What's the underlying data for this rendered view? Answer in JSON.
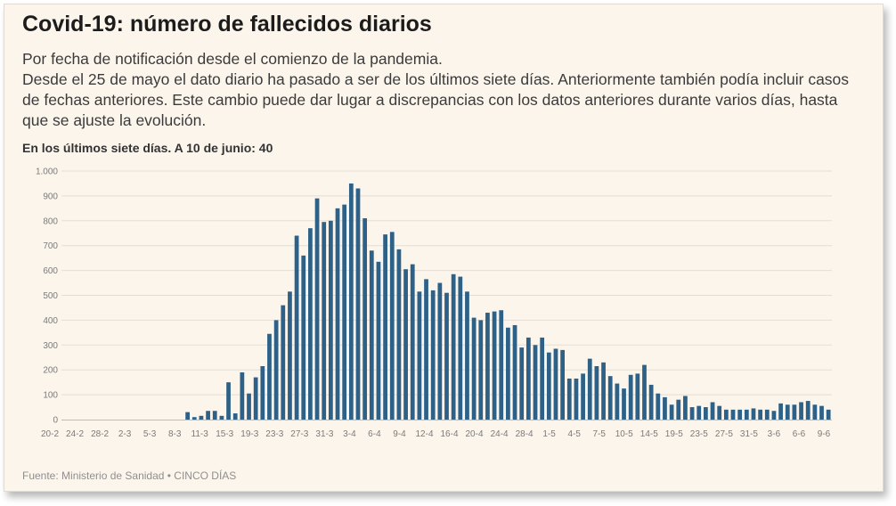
{
  "header": {
    "title": "Covid-19: número de fallecidos diarios",
    "description": [
      "Por fecha de notificación desde el comienzo de la pandemia.",
      "Desde el 25 de mayo el dato diario ha pasado a ser de los últimos siete días. Anteriormente también podía incluir casos de fechas anteriores. Este cambio puede dar lugar a discrepancias con los datos anteriores durante varios días, hasta que se ajuste la evolución."
    ],
    "subtitle": "En los últimos siete días. A 10 de junio: 40"
  },
  "footer": {
    "source": "Fuente: Ministerio de Sanidad • CINCO DÍAS"
  },
  "colors": {
    "bar": "#2d6187",
    "background": "#fcf5ec"
  },
  "chart_data": {
    "type": "bar",
    "title": "Covid-19: número de fallecidos diarios",
    "xlabel": "",
    "ylabel": "",
    "ylim": [
      0,
      1000
    ],
    "grid": true,
    "yticks": [
      0,
      100,
      200,
      300,
      400,
      500,
      600,
      700,
      800,
      900,
      1000
    ],
    "ytick_labels": [
      "0",
      "100",
      "200",
      "300",
      "400",
      "500",
      "600",
      "700",
      "800",
      "900",
      "1.000"
    ],
    "xtick_labels": [
      "20-2",
      "24-2",
      "28-2",
      "2-3",
      "5-3",
      "8-3",
      "11-3",
      "15-3",
      "19-3",
      "23-3",
      "27-3",
      "31-3",
      "3-4",
      "6-4",
      "9-4",
      "12-4",
      "16-4",
      "20-4",
      "24-4",
      "28-4",
      "1-5",
      "4-5",
      "7-5",
      "10-5",
      "14-5",
      "19-5",
      "23-5",
      "27-5",
      "31-5",
      "3-6",
      "6-6",
      "9-6"
    ],
    "values": [
      0,
      0,
      0,
      0,
      0,
      0,
      0,
      0,
      0,
      0,
      0,
      0,
      0,
      0,
      0,
      0,
      0,
      0,
      30,
      10,
      15,
      35,
      35,
      15,
      150,
      25,
      190,
      105,
      170,
      215,
      345,
      400,
      460,
      515,
      740,
      660,
      770,
      890,
      795,
      800,
      850,
      865,
      950,
      930,
      810,
      680,
      635,
      745,
      755,
      685,
      605,
      625,
      515,
      565,
      520,
      550,
      510,
      585,
      575,
      515,
      410,
      400,
      430,
      435,
      440,
      370,
      380,
      290,
      330,
      300,
      330,
      270,
      285,
      280,
      165,
      165,
      185,
      245,
      215,
      230,
      175,
      145,
      125,
      180,
      185,
      220,
      140,
      105,
      90,
      60,
      80,
      95,
      50,
      55,
      50,
      70,
      55,
      40,
      40,
      40,
      40,
      45,
      40,
      40,
      35,
      65,
      60,
      60,
      70,
      75,
      60,
      55,
      40
    ]
  }
}
